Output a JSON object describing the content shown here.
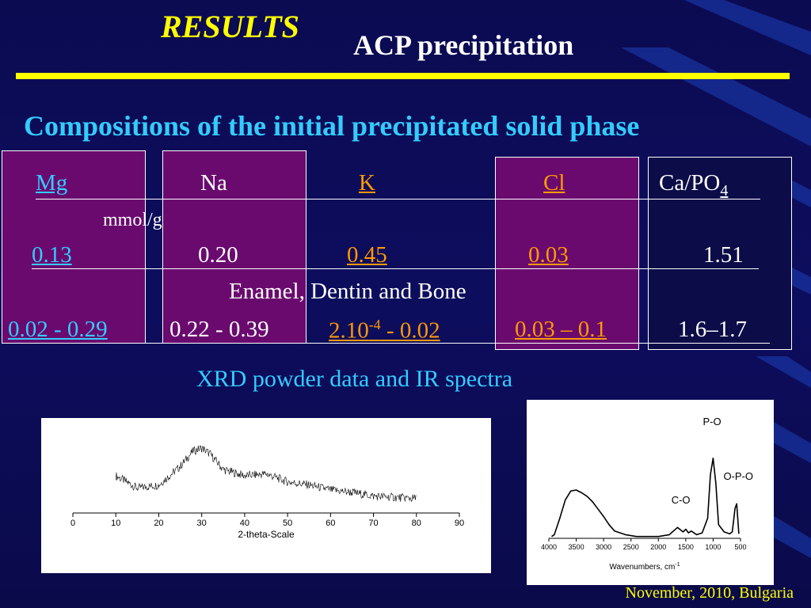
{
  "header": {
    "results": "RESULTS",
    "title": "ACP  precipitation"
  },
  "subtitle": "Compositions of the initial precipitated solid phase",
  "table": {
    "headers": {
      "mg": "Mg",
      "na": "Na",
      "k": "K",
      "cl": "Cl",
      "ca_po": "Ca/PO",
      "ca_po_sub": "4"
    },
    "unit": "mmol/g",
    "acp_row": {
      "mg": "0.13",
      "na": "0.20",
      "k": "0.45",
      "cl": "0.03",
      "ca_po": "1.51"
    },
    "reference_label": "Enamel, Dentin and Bone",
    "reference_row": {
      "mg": "0.02 - 0.29",
      "na": "0.22 - 0.39",
      "k_base": "2.10",
      "k_exp": "-4",
      "k_rest": " - 0.02",
      "cl": "0.03 – 0.1",
      "ca_po": "1.6–1.7"
    }
  },
  "xrd_label": "XRD powder data and IR spectra",
  "chart_data": [
    {
      "type": "line",
      "xlabel": "2-theta-Scale",
      "ylabel": "",
      "xlim": [
        0,
        90
      ],
      "xticks": [
        "0",
        "10",
        "20",
        "30",
        "40",
        "50",
        "60",
        "70",
        "80",
        "90"
      ],
      "series": [
        {
          "x": [
            10,
            15,
            20,
            25,
            28,
            30,
            32,
            35,
            40,
            45,
            50,
            55,
            60,
            65,
            70,
            75,
            80
          ],
          "y": [
            0.45,
            0.25,
            0.3,
            0.6,
            0.85,
            0.9,
            0.8,
            0.55,
            0.45,
            0.48,
            0.35,
            0.3,
            0.22,
            0.18,
            0.12,
            0.1,
            0.08
          ]
        }
      ]
    },
    {
      "type": "line",
      "xlabel": "Wavenumbers, cm",
      "xlabel_sup": "-1",
      "ylabel": "",
      "xlim": [
        4000,
        500
      ],
      "xticks": [
        "4000",
        "3500",
        "3000",
        "2500",
        "2000",
        "1500",
        "1000",
        "500"
      ],
      "annotations": [
        "P-O",
        "O-P-O",
        "C-O"
      ],
      "series": [
        {
          "x": [
            3950,
            3900,
            3800,
            3700,
            3600,
            3500,
            3400,
            3300,
            3200,
            3100,
            3000,
            2900,
            2800,
            2600,
            2400,
            2200,
            2000,
            1800,
            1650,
            1550,
            1500,
            1450,
            1400,
            1300,
            1200,
            1100,
            1050,
            1000,
            950,
            900,
            800,
            700,
            650,
            600,
            570,
            550,
            530
          ],
          "y": [
            0.02,
            0.04,
            0.22,
            0.42,
            0.52,
            0.53,
            0.5,
            0.46,
            0.4,
            0.32,
            0.24,
            0.15,
            0.08,
            0.04,
            0.02,
            0.02,
            0.02,
            0.04,
            0.12,
            0.07,
            0.1,
            0.06,
            0.08,
            0.04,
            0.06,
            0.22,
            0.7,
            0.88,
            0.6,
            0.15,
            0.07,
            0.05,
            0.07,
            0.33,
            0.38,
            0.22,
            0.05
          ]
        }
      ]
    }
  ],
  "footer": "November, 2010, Bulgaria"
}
